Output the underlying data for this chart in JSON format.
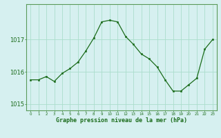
{
  "x": [
    0,
    1,
    2,
    3,
    4,
    5,
    6,
    7,
    8,
    9,
    10,
    11,
    12,
    13,
    14,
    15,
    16,
    17,
    18,
    19,
    20,
    21,
    22,
    23
  ],
  "y": [
    1015.75,
    1015.75,
    1015.85,
    1015.7,
    1015.95,
    1016.1,
    1016.3,
    1016.65,
    1017.05,
    1017.55,
    1017.6,
    1017.55,
    1017.1,
    1016.85,
    1016.55,
    1016.4,
    1016.15,
    1015.75,
    1015.4,
    1015.4,
    1015.6,
    1015.8,
    1016.7,
    1017.0
  ],
  "line_color": "#1a6b1a",
  "marker_color": "#1a6b1a",
  "bg_color": "#d6f0f0",
  "grid_color": "#aaddcc",
  "border_color": "#5a9a5a",
  "xlabel": "Graphe pression niveau de la mer (hPa)",
  "xlabel_color": "#1a6b1a",
  "tick_color": "#1a6b1a",
  "yticks": [
    1015,
    1016,
    1017
  ],
  "ylim": [
    1014.8,
    1018.1
  ],
  "xlim": [
    -0.5,
    23.5
  ],
  "font_color": "#1a6b1a"
}
